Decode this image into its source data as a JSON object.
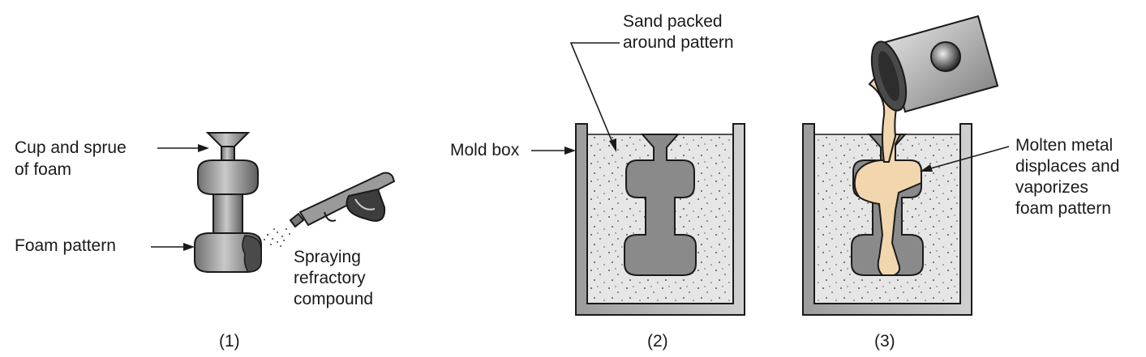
{
  "figure": {
    "panel1": {
      "label_cup": [
        "Cup and sprue",
        "of foam"
      ],
      "label_pattern": "Foam pattern",
      "label_spray": [
        "Spraying",
        "refractory",
        "compound"
      ],
      "step": "(1)"
    },
    "panel2": {
      "label_sand": [
        "Sand packed",
        "around pattern"
      ],
      "label_box": "Mold box",
      "step": "(2)"
    },
    "panel3": {
      "label_metal": [
        "Molten metal",
        "displaces and",
        "vaporizes",
        "foam pattern"
      ],
      "step": "(3)"
    }
  },
  "colors": {
    "sand": "#e6e6e6",
    "foam": "#8a8a8a",
    "metal": "#f1d6ae",
    "outline": "#1a1a1a",
    "box": "#bdbdbd"
  },
  "icons": {
    "spray_gun": "spray-gun-icon",
    "ladle": "ladle-icon"
  }
}
